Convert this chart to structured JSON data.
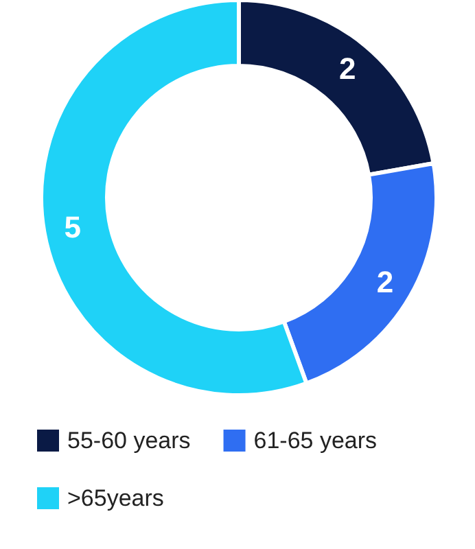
{
  "chart_data": {
    "type": "donut",
    "categories": [
      "55-60 years",
      "61-65 years",
      ">65years"
    ],
    "values": [
      2,
      2,
      5
    ],
    "colors": [
      "#0a1a45",
      "#2f6ef2",
      "#1fd2f7"
    ],
    "data_labels": true,
    "legend": "bottom"
  }
}
